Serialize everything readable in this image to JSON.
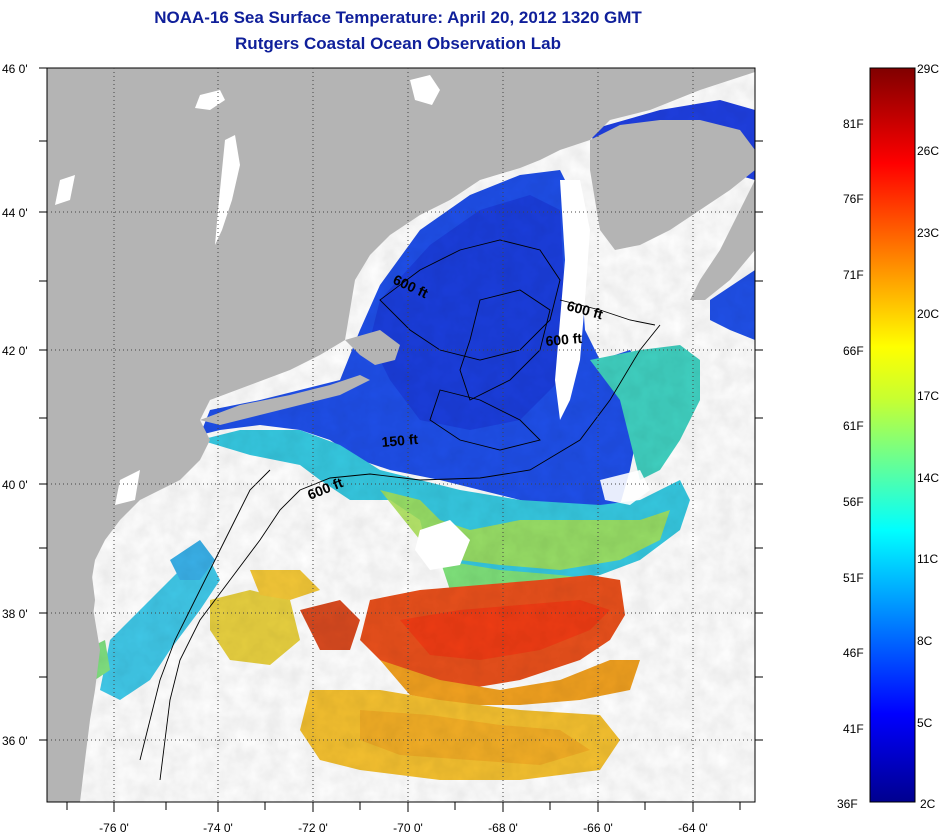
{
  "title": "NOAA-16 Sea Surface Temperature:  April 20, 2012 1320 GMT",
  "subtitle": "Rutgers Coastal Ocean Observation Lab",
  "map": {
    "lon_labels": [
      "-76 0'",
      "-74 0'",
      "-72 0'",
      "-70 0'",
      "-68 0'",
      "-66 0'",
      "-64 0'"
    ],
    "lat_labels": [
      "46 0'",
      "44 0'",
      "42 0'",
      "40 0'",
      "38 0'",
      "36 0'"
    ],
    "contour_labels": [
      "600 ft",
      "600 ft",
      "600 ft",
      "150 ft",
      "600 ft"
    ],
    "colors": {
      "land": "#b4b4b4",
      "no_data": "#ffffff",
      "cold": "#1a3fe0",
      "warm": "#e8401a"
    }
  },
  "colorbar": {
    "fahrenheit": [
      "81F",
      "76F",
      "71F",
      "66F",
      "61F",
      "56F",
      "51F",
      "46F",
      "41F",
      "36F"
    ],
    "celsius": [
      "29C",
      "26C",
      "23C",
      "20C",
      "17C",
      "14C",
      "11C",
      "8C",
      "5C",
      "2C"
    ]
  }
}
